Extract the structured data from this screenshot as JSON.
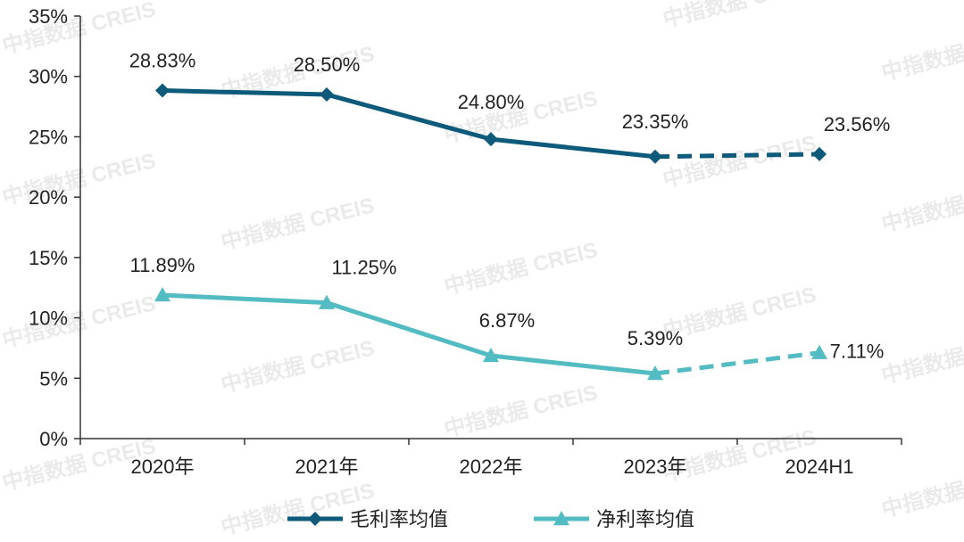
{
  "chart_data": {
    "type": "line",
    "title": "",
    "xlabel": "",
    "ylabel": "",
    "categories": [
      "2020年",
      "2021年",
      "2022年",
      "2023年",
      "2024H1"
    ],
    "ylim": [
      0,
      35
    ],
    "yticks": [
      0,
      5,
      10,
      15,
      20,
      25,
      30,
      35
    ],
    "ytick_labels": [
      "0%",
      "5%",
      "10%",
      "15%",
      "20%",
      "25%",
      "30%",
      "35%"
    ],
    "grid": false,
    "legend_position": "bottom",
    "series": [
      {
        "name": "毛利率均值",
        "values": [
          28.83,
          28.5,
          24.8,
          23.35,
          23.56
        ],
        "labels": [
          "28.83%",
          "28.50%",
          "24.80%",
          "23.35%",
          "23.56%"
        ],
        "color": "#0e5a7a",
        "marker": "diamond",
        "dashed_from_index": 3
      },
      {
        "name": "净利率均值",
        "values": [
          11.89,
          11.25,
          6.87,
          5.39,
          7.11
        ],
        "labels": [
          "11.89%",
          "11.25%",
          "6.87%",
          "5.39%",
          "7.11%"
        ],
        "color": "#52bcc2",
        "marker": "triangle",
        "dashed_from_index": 3
      }
    ]
  },
  "watermark": "中指数据 CREIS"
}
